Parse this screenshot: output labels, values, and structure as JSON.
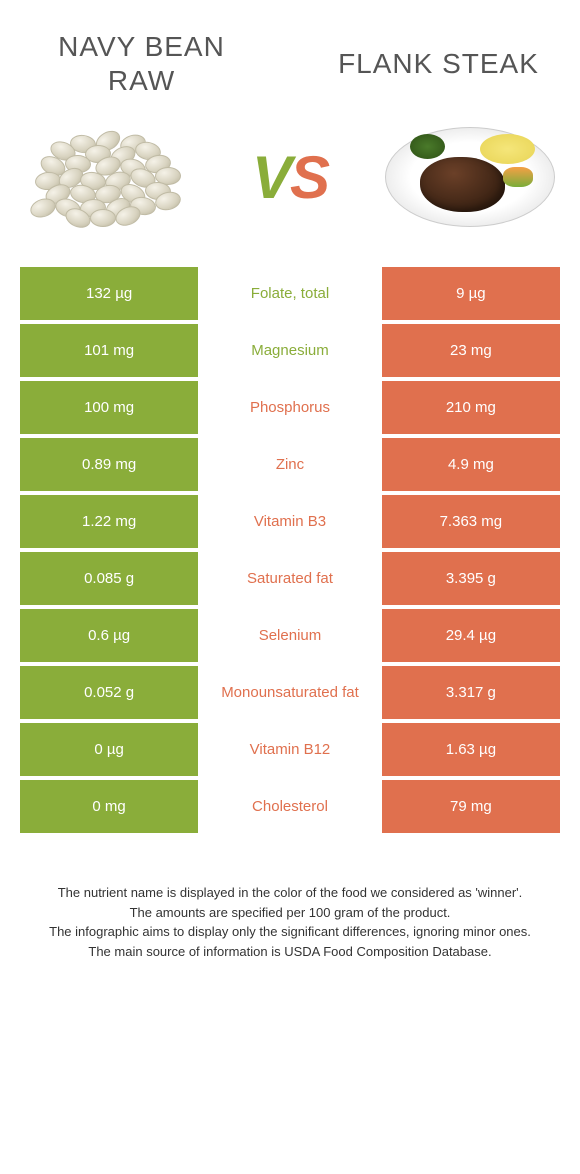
{
  "titles": {
    "left_line1": "Navy bean",
    "left_line2": "raw",
    "right": "Flank steak"
  },
  "vs": {
    "v": "V",
    "s": "S"
  },
  "colors": {
    "left": "#8aad3a",
    "right": "#e0704e",
    "left_text": "#ffffff",
    "right_text": "#ffffff",
    "mid_bg": "#ffffff"
  },
  "rows": [
    {
      "left": "132 µg",
      "label": "Folate, total",
      "right": "9 µg",
      "winner": "left"
    },
    {
      "left": "101 mg",
      "label": "Magnesium",
      "right": "23 mg",
      "winner": "left"
    },
    {
      "left": "100 mg",
      "label": "Phosphorus",
      "right": "210 mg",
      "winner": "right"
    },
    {
      "left": "0.89 mg",
      "label": "Zinc",
      "right": "4.9 mg",
      "winner": "right"
    },
    {
      "left": "1.22 mg",
      "label": "Vitamin B3",
      "right": "7.363 mg",
      "winner": "right"
    },
    {
      "left": "0.085 g",
      "label": "Saturated fat",
      "right": "3.395 g",
      "winner": "right"
    },
    {
      "left": "0.6 µg",
      "label": "Selenium",
      "right": "29.4 µg",
      "winner": "right"
    },
    {
      "left": "0.052 g",
      "label": "Monounsaturated fat",
      "right": "3.317 g",
      "winner": "right"
    },
    {
      "left": "0 µg",
      "label": "Vitamin B12",
      "right": "1.63 µg",
      "winner": "right"
    },
    {
      "left": "0 mg",
      "label": "Cholesterol",
      "right": "79 mg",
      "winner": "right"
    }
  ],
  "footnotes": [
    "The nutrient name is displayed in the color of the food we considered as 'winner'.",
    "The amounts are specified per 100 gram of the product.",
    "The infographic aims to display only the significant differences, ignoring minor ones.",
    "The main source of information is USDA Food Composition Database."
  ]
}
